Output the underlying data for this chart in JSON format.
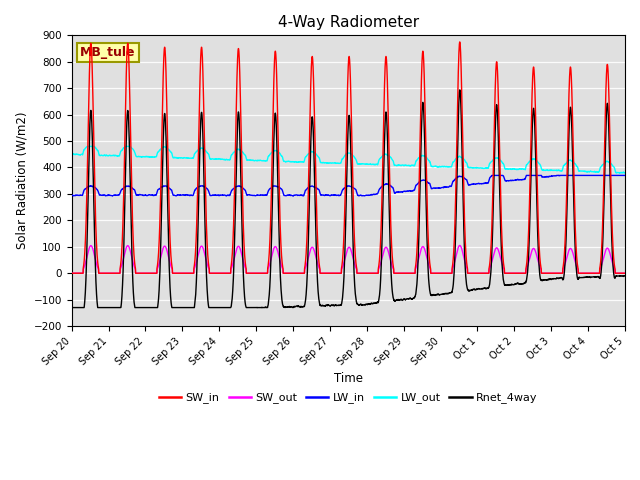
{
  "title": "4-Way Radiometer",
  "ylabel": "Solar Radiation (W/m2)",
  "xlabel": "Time",
  "ylim": [
    -200,
    900
  ],
  "yticks": [
    -200,
    -100,
    0,
    100,
    200,
    300,
    400,
    500,
    600,
    700,
    800,
    900
  ],
  "label_box": "MB_tule",
  "legend": [
    "SW_in",
    "SW_out",
    "LW_in",
    "LW_out",
    "Rnet_4way"
  ],
  "colors": {
    "SW_in": "#ff0000",
    "SW_out": "#ff00ff",
    "LW_in": "#0000ff",
    "LW_out": "#00ffff",
    "Rnet_4way": "#000000"
  },
  "bg_color": "#e0e0e0",
  "tick_labels": [
    "Sep 20",
    "Sep 21",
    "Sep 22",
    "Sep 23",
    "Sep 24",
    "Sep 25",
    "Sep 26",
    "Sep 27",
    "Sep 28",
    "Sep 29",
    "Sep 30",
    "Oct 1",
    "Oct 2",
    "Oct 3",
    "Oct 4",
    "Oct 5"
  ],
  "peak_sw": [
    870,
    870,
    855,
    855,
    850,
    840,
    820,
    820,
    820,
    840,
    875,
    800,
    780,
    780,
    790
  ],
  "day_hours": 8,
  "total_days": 15
}
